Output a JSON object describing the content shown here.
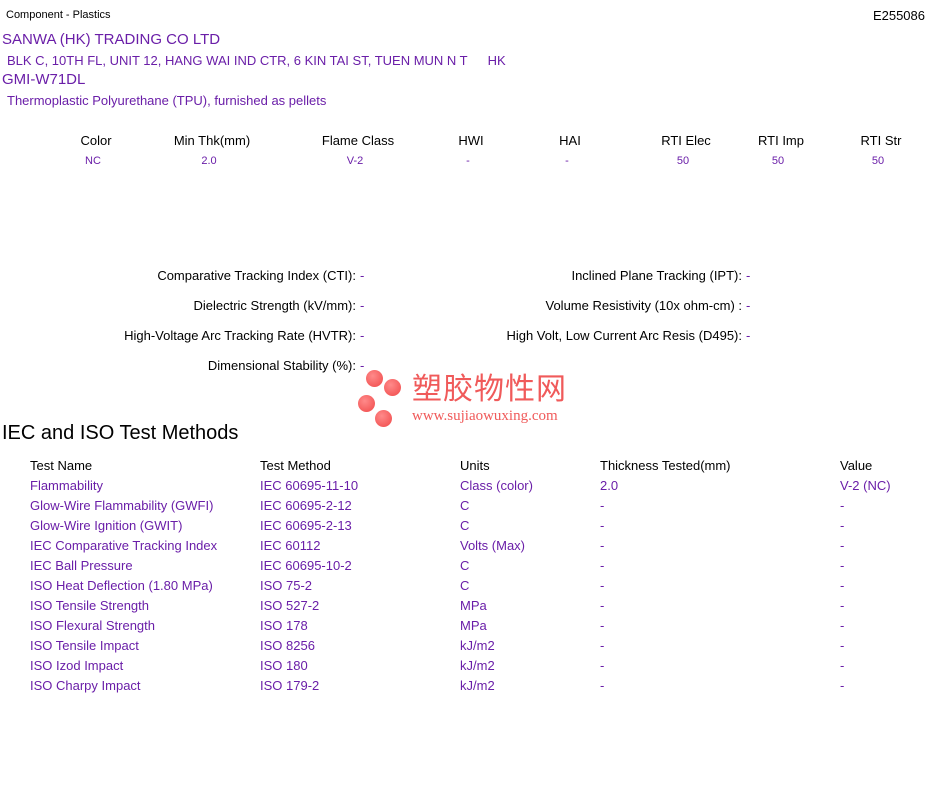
{
  "header": {
    "category": "Component - Plastics",
    "file_number": "E255086"
  },
  "company": {
    "name": "SANWA (HK) TRADING CO LTD",
    "address": "BLK C, 10TH FL, UNIT 12, HANG WAI IND CTR, 6 KIN TAI ST, TUEN MUN N T",
    "country": "HK"
  },
  "product": {
    "grade": "GMI-W71DL",
    "description": "Thermoplastic Polyurethane (TPU), furnished as pellets"
  },
  "ratings": {
    "headers": [
      "Color",
      "Min Thk(mm)",
      "Flame Class",
      "HWI",
      "HAI",
      "RTI Elec",
      "RTI Imp",
      "RTI Str"
    ],
    "values": [
      "NC",
      "2.0",
      "V-2",
      "-",
      "-",
      "50",
      "50",
      "50"
    ]
  },
  "properties": {
    "left": [
      {
        "label": "Comparative Tracking Index (CTI):",
        "value": "-"
      },
      {
        "label": "Dielectric Strength (kV/mm):",
        "value": "-"
      },
      {
        "label": "High-Voltage Arc Tracking Rate (HVTR):",
        "value": "-"
      },
      {
        "label": "Dimensional Stability (%):",
        "value": "-"
      }
    ],
    "right": [
      {
        "label": "Inclined Plane Tracking (IPT):",
        "value": "-"
      },
      {
        "label": "Volume Resistivity (10x ohm-cm) :",
        "value": "-"
      },
      {
        "label": "High Volt, Low Current Arc Resis (D495):",
        "value": "-"
      }
    ]
  },
  "watermark": {
    "chinese": "塑胶物性网",
    "url": "www.sujiaowuxing.com"
  },
  "tests": {
    "title": "IEC and ISO Test Methods",
    "headers": [
      "Test Name",
      "Test Method",
      "Units",
      "Thickness Tested(mm)",
      "Value"
    ],
    "rows": [
      [
        "Flammability",
        "IEC 60695-11-10",
        "Class (color)",
        "2.0",
        "V-2 (NC)"
      ],
      [
        "Glow-Wire Flammability (GWFI)",
        "IEC 60695-2-12",
        "C",
        "-",
        "-"
      ],
      [
        "Glow-Wire Ignition (GWIT)",
        "IEC 60695-2-13",
        "C",
        "-",
        "-"
      ],
      [
        "IEC Comparative Tracking Index",
        "IEC 60112",
        "Volts (Max)",
        "-",
        "-"
      ],
      [
        "IEC Ball Pressure",
        "IEC 60695-10-2",
        "C",
        "-",
        "-"
      ],
      [
        "ISO Heat Deflection (1.80 MPa)",
        "ISO 75-2",
        "C",
        "-",
        "-"
      ],
      [
        "ISO Tensile Strength",
        "ISO 527-2",
        "MPa",
        "-",
        "-"
      ],
      [
        "ISO Flexural Strength",
        "ISO 178",
        "MPa",
        "-",
        "-"
      ],
      [
        "ISO Tensile Impact",
        "ISO 8256",
        "kJ/m2",
        "-",
        "-"
      ],
      [
        "ISO Izod Impact",
        "ISO 180",
        "kJ/m2",
        "-",
        "-"
      ],
      [
        "ISO Charpy Impact",
        "ISO 179-2",
        "kJ/m2",
        "-",
        "-"
      ]
    ]
  }
}
